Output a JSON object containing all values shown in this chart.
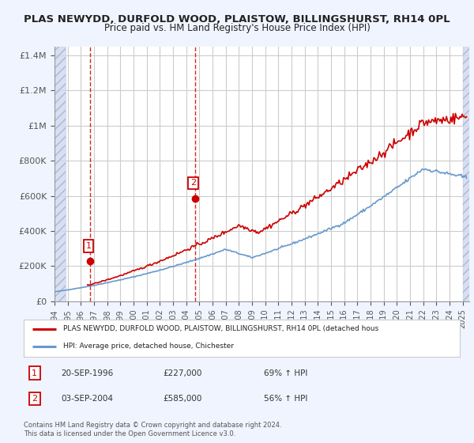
{
  "title1": "PLAS NEWYDD, DURFOLD WOOD, PLAISTOW, BILLINGSHURST, RH14 0PL",
  "title2": "Price paid vs. HM Land Registry's House Price Index (HPI)",
  "ylabel_ticks": [
    "£0",
    "£200K",
    "£400K",
    "£600K",
    "£800K",
    "£1M",
    "£1.2M",
    "£1.4M"
  ],
  "ytick_vals": [
    0,
    200000,
    400000,
    600000,
    800000,
    1000000,
    1200000,
    1400000
  ],
  "ylim": [
    0,
    1450000
  ],
  "xlim_start": 1994.0,
  "xlim_end": 2025.5,
  "xticks": [
    1994,
    1995,
    1996,
    1997,
    1998,
    1999,
    2000,
    2001,
    2002,
    2003,
    2004,
    2005,
    2006,
    2007,
    2008,
    2009,
    2010,
    2011,
    2012,
    2013,
    2014,
    2015,
    2016,
    2017,
    2018,
    2019,
    2020,
    2021,
    2022,
    2023,
    2024,
    2025
  ],
  "red_line_color": "#cc0000",
  "blue_line_color": "#6699cc",
  "sale1_x": 1996.72,
  "sale1_y": 227000,
  "sale2_x": 2004.67,
  "sale2_y": 585000,
  "legend_label_red": "PLAS NEWYDD, DURFOLD WOOD, PLAISTOW, BILLINGSHURST, RH14 0PL (detached hous",
  "legend_label_blue": "HPI: Average price, detached house, Chichester",
  "table_data": [
    {
      "num": "1",
      "date": "20-SEP-1996",
      "price": "£227,000",
      "change": "69% ↑ HPI"
    },
    {
      "num": "2",
      "date": "03-SEP-2004",
      "price": "£585,000",
      "change": "56% ↑ HPI"
    }
  ],
  "footnote": "Contains HM Land Registry data © Crown copyright and database right 2024.\nThis data is licensed under the Open Government Licence v3.0.",
  "background_color": "#f0f4ff",
  "plot_bg_color": "#ffffff",
  "grid_color": "#cccccc",
  "hatch_color": "#d0d8f0"
}
